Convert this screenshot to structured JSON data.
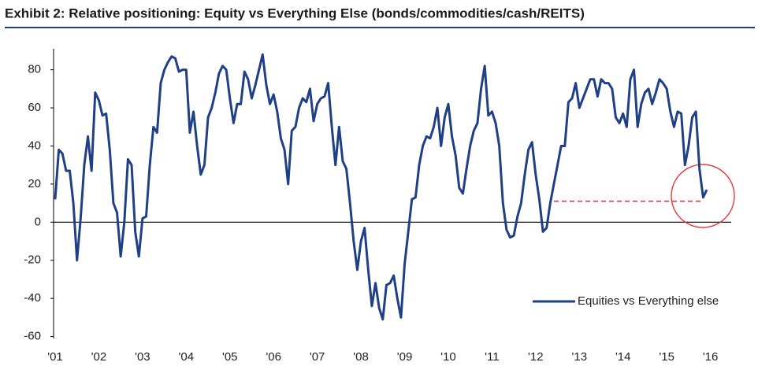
{
  "chart_data": {
    "type": "line",
    "title": "Exhibit 2: Relative positioning: Equity vs Everything Else (bonds/commodities/cash/REITS)",
    "categories": [
      "'01",
      null,
      null,
      null,
      null,
      null,
      null,
      null,
      null,
      null,
      null,
      null,
      "'02",
      null,
      null,
      null,
      null,
      null,
      null,
      null,
      null,
      null,
      null,
      null,
      "'03",
      null,
      null,
      null,
      null,
      null,
      null,
      null,
      null,
      null,
      null,
      null,
      "'04",
      null,
      null,
      null,
      null,
      null,
      null,
      null,
      null,
      null,
      null,
      null,
      "'05",
      null,
      null,
      null,
      null,
      null,
      null,
      null,
      null,
      null,
      null,
      null,
      "'06",
      null,
      null,
      null,
      null,
      null,
      null,
      null,
      null,
      null,
      null,
      null,
      "'07",
      null,
      null,
      null,
      null,
      null,
      null,
      null,
      null,
      null,
      null,
      null,
      "'08",
      null,
      null,
      null,
      null,
      null,
      null,
      null,
      null,
      null,
      null,
      null,
      "'09",
      null,
      null,
      null,
      null,
      null,
      null,
      null,
      null,
      null,
      null,
      null,
      "'10",
      null,
      null,
      null,
      null,
      null,
      null,
      null,
      null,
      null,
      null,
      null,
      "'11",
      null,
      null,
      null,
      null,
      null,
      null,
      null,
      null,
      null,
      null,
      null,
      "'12",
      null,
      null,
      null,
      null,
      null,
      null,
      null,
      null,
      null,
      null,
      null,
      "'13",
      null,
      null,
      null,
      null,
      null,
      null,
      null,
      null,
      null,
      null,
      null,
      "'14",
      null,
      null,
      null,
      null,
      null,
      null,
      null,
      null,
      null,
      null,
      null,
      "'15",
      null,
      null,
      null,
      null,
      null,
      null,
      null,
      null,
      null,
      null,
      null,
      "'16"
    ],
    "series": [
      {
        "name": "Equities vs Everything else",
        "color": "#1f3f86",
        "values": [
          12,
          38,
          36,
          27,
          27,
          10,
          -20,
          2,
          30,
          45,
          27,
          68,
          64,
          56,
          57,
          38,
          10,
          5,
          -18,
          0,
          33,
          30,
          -5,
          -18,
          2,
          3,
          30,
          50,
          47,
          73,
          80,
          84,
          87,
          86,
          79,
          80,
          80,
          47,
          58,
          40,
          25,
          30,
          55,
          60,
          68,
          78,
          82,
          80,
          65,
          52,
          62,
          62,
          79,
          75,
          65,
          72,
          80,
          88,
          72,
          62,
          67,
          58,
          44,
          38,
          20,
          48,
          50,
          60,
          65,
          63,
          70,
          53,
          62,
          65,
          66,
          73,
          50,
          30,
          50,
          32,
          28,
          10,
          -10,
          -25,
          -10,
          -3,
          -25,
          -44,
          -32,
          -45,
          -51,
          -33,
          -32,
          -28,
          -40,
          -50,
          -22,
          -5,
          12,
          13,
          30,
          40,
          45,
          44,
          50,
          60,
          40,
          55,
          62,
          45,
          35,
          18,
          15,
          28,
          40,
          48,
          52,
          70,
          82,
          56,
          58,
          52,
          40,
          10,
          -4,
          -8,
          -7,
          3,
          10,
          25,
          38,
          42,
          25,
          12,
          -5,
          -3,
          10,
          20,
          30,
          40,
          40,
          63,
          65,
          73,
          60,
          65,
          70,
          75,
          75,
          66,
          75,
          73,
          73,
          70,
          55,
          52,
          57,
          50,
          75,
          80,
          50,
          62,
          68,
          70,
          62,
          68,
          75,
          73,
          70,
          58,
          50,
          58,
          57,
          30,
          40,
          55,
          58,
          28,
          13,
          17,
          null
        ]
      }
    ],
    "ylim": [
      -61,
      91
    ],
    "yticks": [
      -60,
      -40,
      -20,
      0,
      20,
      40,
      60,
      80
    ],
    "grid": false,
    "legend": "lower right",
    "reference_line": {
      "value": 11,
      "color": "#e8383d"
    }
  }
}
